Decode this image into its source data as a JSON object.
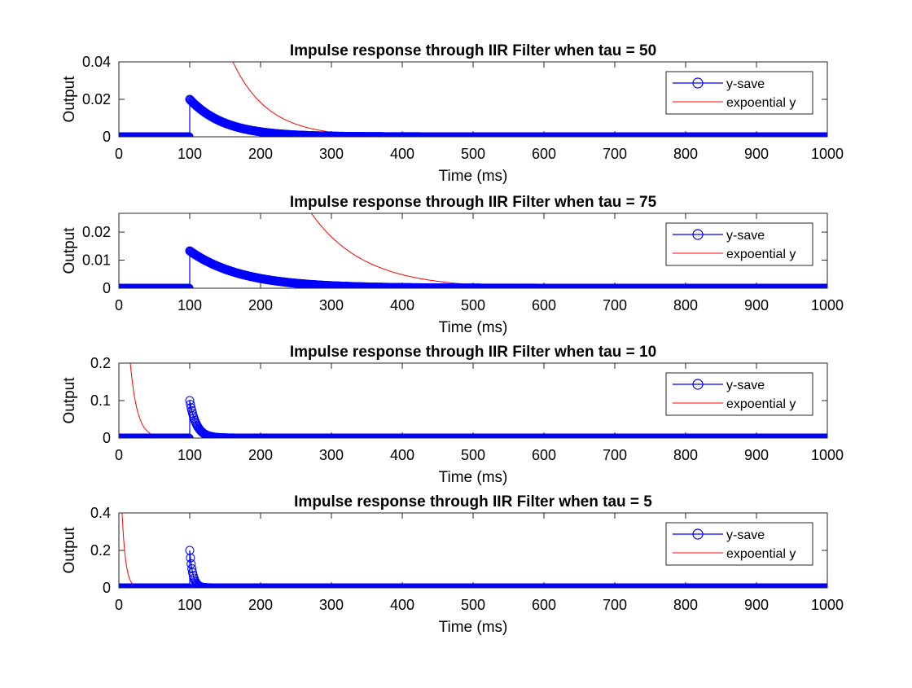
{
  "figure": {
    "chart_data": [
      {
        "type": "line",
        "title": "Impulse response through IIR Filter when tau = 50",
        "xlabel": "Time (ms)",
        "ylabel": "Output",
        "tau": 50,
        "xlim": [
          0,
          1000
        ],
        "ylim": [
          0,
          0.04
        ],
        "xticks": [
          0,
          100,
          200,
          300,
          400,
          500,
          600,
          700,
          800,
          900,
          1000
        ],
        "xtick_labels": [
          "0",
          "100",
          "200",
          "300",
          "400",
          "500",
          "600",
          "700",
          "800",
          "900",
          "1000"
        ],
        "yticks": [
          0,
          0.02,
          0.04
        ],
        "ytick_labels": [
          "0",
          "0.02",
          "0.04"
        ],
        "impulse_time": 100,
        "peak": 0.02,
        "grid": false,
        "legend_position": "top-right",
        "series": [
          {
            "name": "y-save",
            "color": "#0000ff",
            "style": "line-circle-markers"
          },
          {
            "name": "expoential y",
            "color": "#ff0000",
            "style": "line"
          }
        ]
      },
      {
        "type": "line",
        "title": "Impulse response through IIR Filter when tau = 75",
        "xlabel": "Time (ms)",
        "ylabel": "Output",
        "tau": 75,
        "xlim": [
          0,
          1000
        ],
        "ylim": [
          0,
          0.0267
        ],
        "xticks": [
          0,
          100,
          200,
          300,
          400,
          500,
          600,
          700,
          800,
          900,
          1000
        ],
        "xtick_labels": [
          "0",
          "100",
          "200",
          "300",
          "400",
          "500",
          "600",
          "700",
          "800",
          "900",
          "1000"
        ],
        "yticks": [
          0,
          0.01,
          0.02
        ],
        "ytick_labels": [
          "0",
          "0.01",
          "0.02"
        ],
        "impulse_time": 100,
        "peak": 0.0133,
        "grid": false,
        "legend_position": "top-right",
        "series": [
          {
            "name": "y-save",
            "color": "#0000ff",
            "style": "line-circle-markers"
          },
          {
            "name": "expoential y",
            "color": "#ff0000",
            "style": "line"
          }
        ]
      },
      {
        "type": "line",
        "title": "Impulse response through IIR Filter when tau = 10",
        "xlabel": "Time (ms)",
        "ylabel": "Output",
        "tau": 10,
        "xlim": [
          0,
          1000
        ],
        "ylim": [
          0,
          0.2
        ],
        "xticks": [
          0,
          100,
          200,
          300,
          400,
          500,
          600,
          700,
          800,
          900,
          1000
        ],
        "xtick_labels": [
          "0",
          "100",
          "200",
          "300",
          "400",
          "500",
          "600",
          "700",
          "800",
          "900",
          "1000"
        ],
        "yticks": [
          0,
          0.1,
          0.2
        ],
        "ytick_labels": [
          "0",
          "0.1",
          "0.2"
        ],
        "impulse_time": 100,
        "peak": 0.1,
        "grid": false,
        "legend_position": "top-right",
        "series": [
          {
            "name": "y-save",
            "color": "#0000ff",
            "style": "line-circle-markers"
          },
          {
            "name": "expoential y",
            "color": "#ff0000",
            "style": "line"
          }
        ]
      },
      {
        "type": "line",
        "title": "Impulse response through IIR Filter when tau = 5",
        "xlabel": "Time (ms)",
        "ylabel": "Output",
        "tau": 5,
        "xlim": [
          0,
          1000
        ],
        "ylim": [
          0,
          0.4
        ],
        "xticks": [
          0,
          100,
          200,
          300,
          400,
          500,
          600,
          700,
          800,
          900,
          1000
        ],
        "xtick_labels": [
          "0",
          "100",
          "200",
          "300",
          "400",
          "500",
          "600",
          "700",
          "800",
          "900",
          "1000"
        ],
        "yticks": [
          0,
          0.2,
          0.4
        ],
        "ytick_labels": [
          "0",
          "0.2",
          "0.4"
        ],
        "impulse_time": 100,
        "peak": 0.2,
        "grid": false,
        "legend_position": "top-right",
        "series": [
          {
            "name": "y-save",
            "color": "#0000ff",
            "style": "line-circle-markers"
          },
          {
            "name": "expoential y",
            "color": "#ff0000",
            "style": "line"
          }
        ]
      }
    ]
  }
}
